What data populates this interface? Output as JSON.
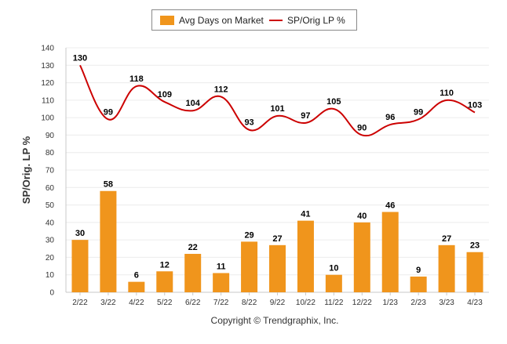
{
  "chart_data": {
    "type": "bar",
    "categories": [
      "2/22",
      "3/22",
      "4/22",
      "5/22",
      "6/22",
      "7/22",
      "8/22",
      "9/22",
      "10/22",
      "11/22",
      "12/22",
      "1/23",
      "2/23",
      "3/23",
      "4/23"
    ],
    "series": [
      {
        "name": "Avg Days on Market",
        "type": "bar",
        "color": "#f0951c",
        "values": [
          30,
          58,
          6,
          12,
          22,
          11,
          29,
          27,
          41,
          10,
          40,
          46,
          9,
          27,
          23
        ]
      },
      {
        "name": "SP/Orig LP %",
        "type": "line",
        "color": "#cc0000",
        "values": [
          130,
          99,
          118,
          109,
          104,
          112,
          93,
          101,
          97,
          105,
          90,
          96,
          99,
          110,
          103
        ]
      }
    ],
    "ylabel": "SP/Orig. LP %",
    "ylim": [
      0,
      140
    ],
    "yticks": [
      0,
      10,
      20,
      30,
      40,
      50,
      60,
      70,
      80,
      90,
      100,
      110,
      120,
      130,
      140
    ],
    "grid": true,
    "legend": "top-center"
  },
  "footer": {
    "copyright": "Copyright © Trendgraphix, Inc."
  }
}
